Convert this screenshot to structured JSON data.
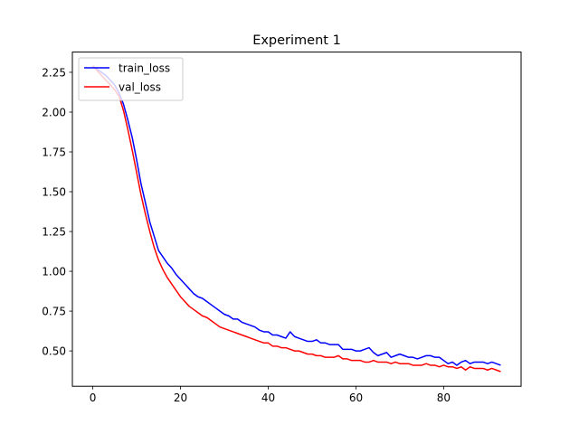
{
  "chart_data": {
    "type": "line",
    "title": "Experiment 1",
    "xlabel": "",
    "ylabel": "",
    "xlim": [
      -4.65,
      97.65
    ],
    "ylim": [
      0.278,
      2.377
    ],
    "xticks": [
      0,
      20,
      40,
      60,
      80
    ],
    "yticks": [
      0.5,
      0.75,
      1.0,
      1.25,
      1.5,
      1.75,
      2.0,
      2.25
    ],
    "ytick_labels": [
      "0.50",
      "0.75",
      "1.00",
      "1.25",
      "1.50",
      "1.75",
      "2.00",
      "2.25"
    ],
    "grid": false,
    "legend": "upper-left",
    "series": [
      {
        "name": "train_loss",
        "color": "#0000ff",
        "x": [
          0,
          1,
          2,
          3,
          4,
          5,
          6,
          7,
          8,
          9,
          10,
          11,
          12,
          13,
          14,
          15,
          16,
          17,
          18,
          19,
          20,
          21,
          22,
          23,
          24,
          25,
          26,
          27,
          28,
          29,
          30,
          31,
          32,
          33,
          34,
          35,
          36,
          37,
          38,
          39,
          40,
          41,
          42,
          43,
          44,
          45,
          46,
          47,
          48,
          49,
          50,
          51,
          52,
          53,
          54,
          55,
          56,
          57,
          58,
          59,
          60,
          61,
          62,
          63,
          64,
          65,
          66,
          67,
          68,
          69,
          70,
          71,
          72,
          73,
          74,
          75,
          76,
          77,
          78,
          79,
          80,
          81,
          82,
          83,
          84,
          85,
          86,
          87,
          88,
          89,
          90,
          91,
          92,
          93
        ],
        "y": [
          2.29,
          2.27,
          2.25,
          2.23,
          2.2,
          2.17,
          2.12,
          2.05,
          1.95,
          1.84,
          1.7,
          1.55,
          1.43,
          1.31,
          1.22,
          1.13,
          1.09,
          1.05,
          1.02,
          0.98,
          0.95,
          0.92,
          0.89,
          0.86,
          0.84,
          0.83,
          0.81,
          0.79,
          0.77,
          0.75,
          0.73,
          0.72,
          0.7,
          0.7,
          0.68,
          0.67,
          0.66,
          0.65,
          0.63,
          0.62,
          0.62,
          0.6,
          0.6,
          0.59,
          0.58,
          0.62,
          0.59,
          0.58,
          0.57,
          0.56,
          0.56,
          0.57,
          0.55,
          0.55,
          0.54,
          0.54,
          0.54,
          0.51,
          0.51,
          0.51,
          0.5,
          0.5,
          0.51,
          0.52,
          0.49,
          0.47,
          0.48,
          0.49,
          0.46,
          0.47,
          0.48,
          0.47,
          0.46,
          0.46,
          0.45,
          0.46,
          0.47,
          0.47,
          0.46,
          0.46,
          0.44,
          0.42,
          0.43,
          0.41,
          0.43,
          0.44,
          0.42,
          0.43,
          0.43,
          0.43,
          0.42,
          0.43,
          0.42,
          0.41
        ]
      },
      {
        "name": "val_loss",
        "color": "#ff0000",
        "x": [
          0,
          1,
          2,
          3,
          4,
          5,
          6,
          7,
          8,
          9,
          10,
          11,
          12,
          13,
          14,
          15,
          16,
          17,
          18,
          19,
          20,
          21,
          22,
          23,
          24,
          25,
          26,
          27,
          28,
          29,
          30,
          31,
          32,
          33,
          34,
          35,
          36,
          37,
          38,
          39,
          40,
          41,
          42,
          43,
          44,
          45,
          46,
          47,
          48,
          49,
          50,
          51,
          52,
          53,
          54,
          55,
          56,
          57,
          58,
          59,
          60,
          61,
          62,
          63,
          64,
          65,
          66,
          67,
          68,
          69,
          70,
          71,
          72,
          73,
          74,
          75,
          76,
          77,
          78,
          79,
          80,
          81,
          82,
          83,
          84,
          85,
          86,
          87,
          88,
          89,
          90,
          91,
          92,
          93
        ],
        "y": [
          2.29,
          2.26,
          2.23,
          2.2,
          2.17,
          2.14,
          2.1,
          2.01,
          1.89,
          1.76,
          1.62,
          1.48,
          1.36,
          1.25,
          1.15,
          1.07,
          1.01,
          0.96,
          0.92,
          0.88,
          0.84,
          0.81,
          0.78,
          0.76,
          0.74,
          0.72,
          0.71,
          0.69,
          0.67,
          0.65,
          0.64,
          0.63,
          0.62,
          0.61,
          0.6,
          0.59,
          0.58,
          0.57,
          0.56,
          0.55,
          0.55,
          0.53,
          0.53,
          0.52,
          0.52,
          0.51,
          0.5,
          0.5,
          0.49,
          0.48,
          0.48,
          0.47,
          0.47,
          0.46,
          0.46,
          0.46,
          0.47,
          0.45,
          0.45,
          0.44,
          0.44,
          0.44,
          0.43,
          0.43,
          0.44,
          0.43,
          0.43,
          0.43,
          0.42,
          0.43,
          0.42,
          0.42,
          0.42,
          0.41,
          0.41,
          0.41,
          0.42,
          0.41,
          0.41,
          0.4,
          0.41,
          0.4,
          0.4,
          0.39,
          0.4,
          0.38,
          0.4,
          0.39,
          0.39,
          0.39,
          0.38,
          0.39,
          0.38,
          0.37
        ]
      }
    ]
  }
}
